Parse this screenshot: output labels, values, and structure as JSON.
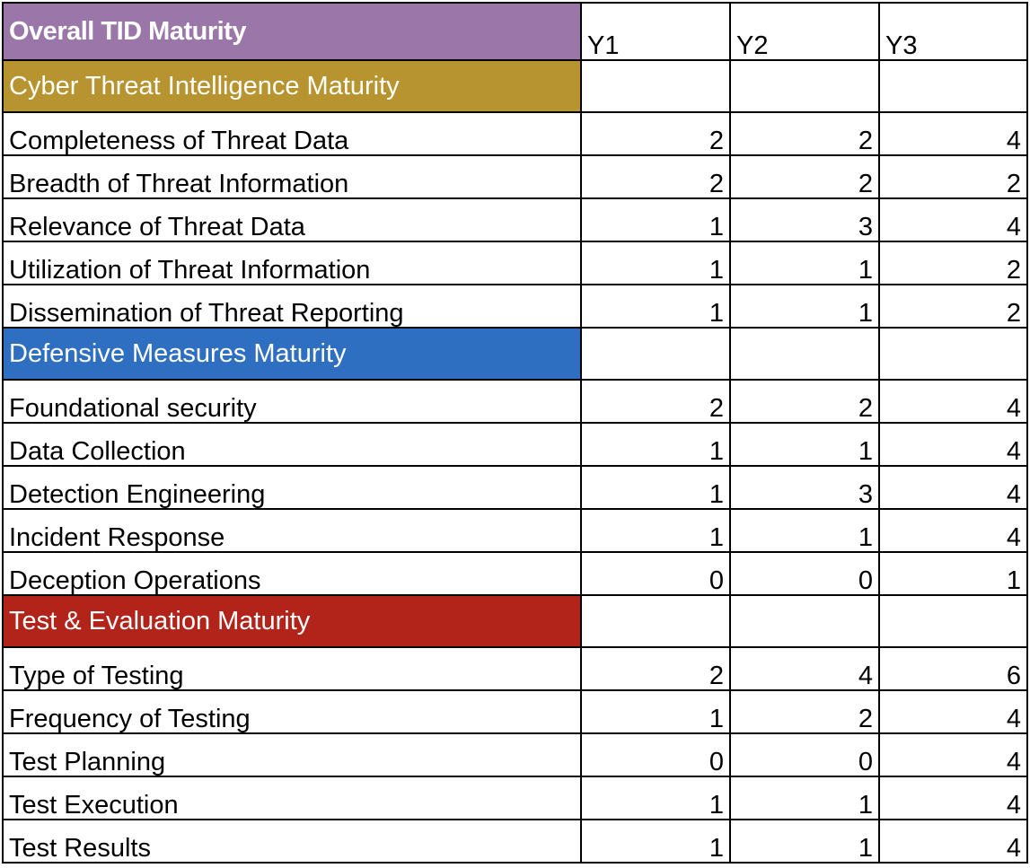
{
  "title": "Overall TID Maturity",
  "years": [
    "Y1",
    "Y2",
    "Y3"
  ],
  "colors": {
    "title_bg": "#9b76a9",
    "section_cti": "#b7942f",
    "section_dm": "#2f6fc1",
    "section_te": "#b2231a"
  },
  "sections": [
    {
      "name": "Cyber Threat Intelligence Maturity",
      "color": "#b7942f",
      "rows": [
        {
          "label": "Completeness of Threat Data",
          "values": [
            "2",
            "2",
            "4"
          ]
        },
        {
          "label": "Breadth of Threat Information",
          "values": [
            "2",
            "2",
            "2"
          ]
        },
        {
          "label": "Relevance of Threat Data",
          "values": [
            "1",
            "3",
            "4"
          ]
        },
        {
          "label": "Utilization of Threat Information",
          "values": [
            "1",
            "1",
            "2"
          ]
        },
        {
          "label": "Dissemination of Threat Reporting",
          "values": [
            "1",
            "1",
            "2"
          ]
        }
      ]
    },
    {
      "name": "Defensive Measures Maturity",
      "color": "#2f6fc1",
      "rows": [
        {
          "label": "Foundational security",
          "values": [
            "2",
            "2",
            "4"
          ]
        },
        {
          "label": "Data Collection",
          "values": [
            "1",
            "1",
            "4"
          ]
        },
        {
          "label": "Detection Engineering",
          "values": [
            "1",
            "3",
            "4"
          ]
        },
        {
          "label": "Incident Response",
          "values": [
            "1",
            "1",
            "4"
          ]
        },
        {
          "label": "Deception Operations",
          "values": [
            "0",
            "0",
            "1"
          ]
        }
      ]
    },
    {
      "name": "Test & Evaluation Maturity",
      "color": "#b2231a",
      "rows": [
        {
          "label": "Type of Testing",
          "values": [
            "2",
            "4",
            "6"
          ]
        },
        {
          "label": "Frequency of Testing",
          "values": [
            "1",
            "2",
            "4"
          ]
        },
        {
          "label": "Test Planning",
          "values": [
            "0",
            "0",
            "4"
          ]
        },
        {
          "label": "Test Execution",
          "values": [
            "1",
            "1",
            "4"
          ]
        },
        {
          "label": "Test Results",
          "values": [
            "1",
            "1",
            "4"
          ]
        }
      ]
    }
  ]
}
